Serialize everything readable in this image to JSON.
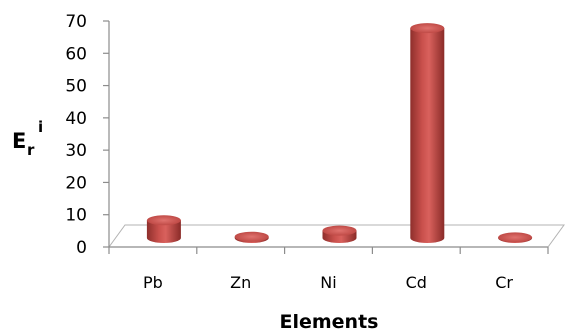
{
  "chart_data": {
    "type": "bar",
    "categories": [
      "Pb",
      "Zn",
      "Ni",
      "Cd",
      "Cr"
    ],
    "values": [
      5.5,
      0.4,
      2.3,
      65,
      0.2
    ],
    "xlabel": "Elements",
    "ylabel_main": "E",
    "ylabel_sub": "r",
    "ylabel_sup": "i",
    "ylim": [
      0,
      70
    ],
    "yticks": [
      0,
      10,
      20,
      30,
      40,
      50,
      60,
      70
    ],
    "grid": false,
    "legend": "none",
    "style": "3d-cylinder",
    "bar_color": "#c0504d"
  }
}
